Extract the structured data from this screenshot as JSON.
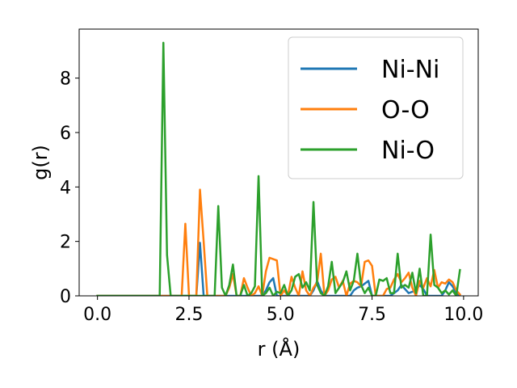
{
  "chart_data": {
    "type": "line",
    "xlabel": "r (Å)",
    "ylabel": "g(r)",
    "xlim": [
      -0.5,
      10.4
    ],
    "ylim": [
      0,
      9.8
    ],
    "xticks": [
      "0.0",
      "2.5",
      "5.0",
      "7.5",
      "10.0"
    ],
    "xtick_values": [
      0,
      2.5,
      5,
      7.5,
      10
    ],
    "yticks": [
      "0",
      "2",
      "4",
      "6",
      "8"
    ],
    "ytick_values": [
      0,
      2,
      4,
      6,
      8
    ],
    "grid": false,
    "legend_position": "top-right",
    "series": [
      {
        "name": "Ni-Ni",
        "color": "#1f77b4",
        "x": [
          0,
          1.0,
          2.0,
          2.7,
          2.8,
          2.9,
          3.0,
          4.5,
          4.6,
          4.7,
          4.8,
          4.9,
          5.8,
          5.9,
          6.0,
          6.1,
          6.2,
          6.9,
          7.0,
          7.1,
          7.2,
          7.3,
          7.4,
          7.5,
          8.0,
          8.2,
          8.3,
          8.4,
          8.5,
          8.7,
          8.8,
          8.9,
          9.0,
          9.4,
          9.5,
          9.6,
          9.7,
          9.8,
          9.9
        ],
        "y": [
          0,
          0,
          0,
          0,
          1.95,
          0,
          0,
          0,
          0.2,
          0.5,
          0.65,
          0,
          0,
          0.2,
          0.55,
          0.2,
          0,
          0,
          0.2,
          0.3,
          0.35,
          0.45,
          0.55,
          0,
          0,
          0.2,
          0.4,
          0.25,
          0.1,
          0.2,
          0.4,
          0.25,
          0,
          0,
          0.2,
          0.5,
          0.35,
          0.1,
          0
        ]
      },
      {
        "name": "O-O",
        "color": "#ff7f0e",
        "x": [
          0,
          1.0,
          2.0,
          2.3,
          2.4,
          2.5,
          2.7,
          2.8,
          2.9,
          3.0,
          3.5,
          3.6,
          3.7,
          3.8,
          3.9,
          4.0,
          4.1,
          4.2,
          4.3,
          4.4,
          4.5,
          4.6,
          4.7,
          4.8,
          4.9,
          5.0,
          5.1,
          5.2,
          5.3,
          5.4,
          5.5,
          5.6,
          5.7,
          5.8,
          5.9,
          6.0,
          6.1,
          6.2,
          6.3,
          6.4,
          6.5,
          6.6,
          6.7,
          6.8,
          6.9,
          7.0,
          7.1,
          7.2,
          7.3,
          7.4,
          7.5,
          7.6,
          7.7,
          7.8,
          7.9,
          8.0,
          8.1,
          8.2,
          8.3,
          8.4,
          8.5,
          8.6,
          8.7,
          8.8,
          8.9,
          9.0,
          9.1,
          9.2,
          9.3,
          9.4,
          9.5,
          9.6,
          9.7,
          9.8,
          9.9
        ],
        "y": [
          0,
          0,
          0,
          0,
          2.65,
          0,
          0,
          3.9,
          2.0,
          0,
          0,
          0.3,
          0.8,
          0,
          0,
          0.65,
          0.3,
          0,
          0.1,
          0.35,
          0,
          0.9,
          1.4,
          1.35,
          1.3,
          0,
          0.2,
          0,
          0.7,
          0.3,
          0,
          0.9,
          0.2,
          0,
          0.3,
          0.5,
          1.55,
          0,
          0.2,
          0.6,
          0.7,
          0.3,
          0.55,
          0,
          0.45,
          0.55,
          0.5,
          0.35,
          1.25,
          1.3,
          1.1,
          0,
          0,
          0,
          0.25,
          0.3,
          0.6,
          0.8,
          0.5,
          0.65,
          0.85,
          0.3,
          0,
          0.55,
          0.3,
          0.65,
          0.35,
          0.95,
          0.3,
          0.5,
          0.45,
          0.6,
          0.5,
          0.2,
          0.05
        ]
      },
      {
        "name": "Ni-O",
        "color": "#2ca02c",
        "x": [
          0,
          1.0,
          1.7,
          1.8,
          1.9,
          2.0,
          3.0,
          3.2,
          3.3,
          3.4,
          3.5,
          3.6,
          3.7,
          3.8,
          3.9,
          4.0,
          4.1,
          4.2,
          4.3,
          4.4,
          4.5,
          4.6,
          4.7,
          4.8,
          4.9,
          5.0,
          5.1,
          5.2,
          5.3,
          5.4,
          5.5,
          5.6,
          5.7,
          5.8,
          5.9,
          6.0,
          6.1,
          6.2,
          6.3,
          6.4,
          6.5,
          6.6,
          6.7,
          6.8,
          6.9,
          7.0,
          7.1,
          7.2,
          7.3,
          7.4,
          7.5,
          7.6,
          7.7,
          7.8,
          7.9,
          8.0,
          8.1,
          8.2,
          8.3,
          8.4,
          8.5,
          8.6,
          8.7,
          8.8,
          8.9,
          9.0,
          9.1,
          9.2,
          9.3,
          9.4,
          9.5,
          9.6,
          9.7,
          9.8,
          9.9
        ],
        "y": [
          0,
          0,
          0,
          9.3,
          1.5,
          0,
          0,
          0,
          3.3,
          0.3,
          0,
          0.4,
          1.15,
          0,
          0,
          0.4,
          0,
          0.1,
          0.35,
          4.4,
          0,
          0.1,
          0.3,
          0,
          0.15,
          0.1,
          0.4,
          0,
          0.2,
          0.7,
          0.8,
          0.3,
          0.5,
          0.2,
          3.45,
          0.4,
          0.1,
          0,
          0.35,
          1.25,
          0.1,
          0.3,
          0.5,
          0.9,
          0.2,
          0.55,
          1.55,
          0.4,
          0.1,
          0.3,
          0,
          0,
          0.6,
          0.55,
          0.65,
          0.1,
          0.1,
          1.55,
          0.3,
          0.4,
          0.3,
          0.85,
          0.1,
          1.0,
          0,
          0,
          2.25,
          0.4,
          0.3,
          0.1,
          0.2,
          0.05,
          0.2,
          0,
          0.95
        ]
      }
    ]
  }
}
